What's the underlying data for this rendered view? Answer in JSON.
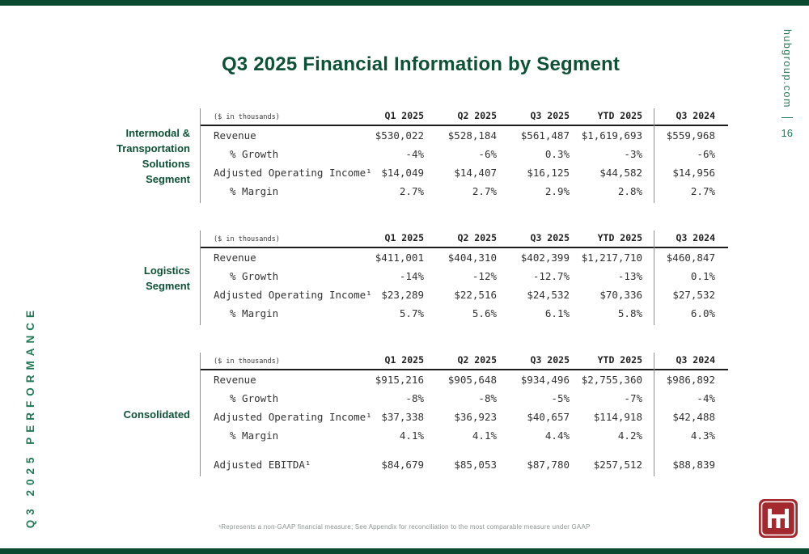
{
  "page": {
    "title": "Q3 2025 Financial Information by Segment",
    "sidebar_text": "Q3 2025 PERFORMANCE",
    "site_text": "hubgroup.com",
    "page_number": "16",
    "footnote": "¹Represents a non-GAAP financial measure; See Appendix for reconciliation to the most comparable measure under GAAP"
  },
  "colors": {
    "brand_green": "#0d5236",
    "rail_green": "#1e7b55",
    "bar_green": "#0b4a30",
    "line_gray": "#8f8f8f",
    "text_dark": "#333333",
    "logo_red": "#a3292e"
  },
  "tables": [
    {
      "segment_label_lines": [
        "Intermodal &",
        "Transportation",
        "Solutions",
        "Segment"
      ],
      "unit_label": "($ in thousands)",
      "columns": [
        "Q1 2025",
        "Q2 2025",
        "Q3 2025",
        "YTD 2025",
        "Q3 2024"
      ],
      "rows": [
        {
          "label": "Revenue",
          "indent": false,
          "gap_before": false,
          "values": [
            "$530,022",
            "$528,184",
            "$561,487",
            "$1,619,693",
            "$559,968"
          ]
        },
        {
          "label": "% Growth",
          "indent": true,
          "gap_before": false,
          "values": [
            "-4%",
            "-6%",
            "0.3%",
            "-3%",
            "-6%"
          ]
        },
        {
          "label": "Adjusted Operating Income¹",
          "indent": false,
          "gap_before": false,
          "values": [
            "$14,049",
            "$14,407",
            "$16,125",
            "$44,582",
            "$14,956"
          ]
        },
        {
          "label": "% Margin",
          "indent": true,
          "gap_before": false,
          "values": [
            "2.7%",
            "2.7%",
            "2.9%",
            "2.8%",
            "2.7%"
          ]
        }
      ]
    },
    {
      "segment_label_lines": [
        "Logistics",
        "Segment"
      ],
      "unit_label": "($ in thousands)",
      "columns": [
        "Q1 2025",
        "Q2 2025",
        "Q3 2025",
        "YTD 2025",
        "Q3 2024"
      ],
      "rows": [
        {
          "label": "Revenue",
          "indent": false,
          "gap_before": false,
          "values": [
            "$411,001",
            "$404,310",
            "$402,399",
            "$1,217,710",
            "$460,847"
          ]
        },
        {
          "label": "% Growth",
          "indent": true,
          "gap_before": false,
          "values": [
            "-14%",
            "-12%",
            "-12.7%",
            "-13%",
            "0.1%"
          ]
        },
        {
          "label": "Adjusted Operating Income¹",
          "indent": false,
          "gap_before": false,
          "values": [
            "$23,289",
            "$22,516",
            "$24,532",
            "$70,336",
            "$27,532"
          ]
        },
        {
          "label": "% Margin",
          "indent": true,
          "gap_before": false,
          "values": [
            "5.7%",
            "5.6%",
            "6.1%",
            "5.8%",
            "6.0%"
          ]
        }
      ]
    },
    {
      "segment_label_lines": [
        "Consolidated"
      ],
      "unit_label": "($ in thousands)",
      "columns": [
        "Q1 2025",
        "Q2 2025",
        "Q3 2025",
        "YTD 2025",
        "Q3 2024"
      ],
      "rows": [
        {
          "label": "Revenue",
          "indent": false,
          "gap_before": false,
          "values": [
            "$915,216",
            "$905,648",
            "$934,496",
            "$2,755,360",
            "$986,892"
          ]
        },
        {
          "label": "% Growth",
          "indent": true,
          "gap_before": false,
          "values": [
            "-8%",
            "-8%",
            "-5%",
            "-7%",
            "-4%"
          ]
        },
        {
          "label": "Adjusted Operating Income¹",
          "indent": false,
          "gap_before": false,
          "values": [
            "$37,338",
            "$36,923",
            "$40,657",
            "$114,918",
            "$42,488"
          ]
        },
        {
          "label": "% Margin",
          "indent": true,
          "gap_before": false,
          "values": [
            "4.1%",
            "4.1%",
            "4.4%",
            "4.2%",
            "4.3%"
          ]
        },
        {
          "label": "Adjusted EBITDA¹",
          "indent": false,
          "gap_before": true,
          "values": [
            "$84,679",
            "$85,053",
            "$87,780",
            "$257,512",
            "$88,839"
          ]
        }
      ]
    }
  ]
}
